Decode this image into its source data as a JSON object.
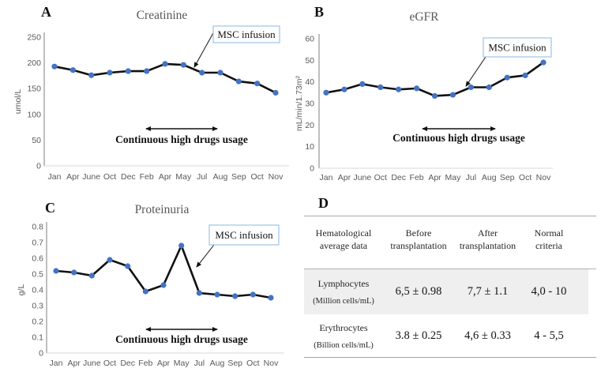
{
  "colors": {
    "marker": "#4472c4",
    "series_line": "#111111",
    "callout_border": "#9dc3e6",
    "muted_text": "#595959",
    "y_axis": "#7f7f7f",
    "x_axis": "#d9d9d9",
    "table_line": "#a6a6a6",
    "row_shade": "#efefef"
  },
  "chart_data": [
    {
      "panel_label": "A",
      "type": "line",
      "title": "Creatinine",
      "ylabel": "umol/L",
      "categories": [
        "Jan",
        "Apr",
        "June",
        "Oct",
        "Dec",
        "Feb",
        "Apr",
        "May",
        "Jul",
        "Aug",
        "Sep",
        "Oct",
        "Nov"
      ],
      "values": [
        193,
        186,
        176,
        181,
        184,
        184,
        198,
        196,
        181,
        181,
        164,
        160,
        142
      ],
      "ylim": [
        0,
        250
      ],
      "ytick_step": 50,
      "grid": "off",
      "legend": "none",
      "annotations": {
        "callout": "MSC infusion",
        "span_label": "Continuous high drugs usage"
      }
    },
    {
      "panel_label": "B",
      "type": "line",
      "title": "eGFR",
      "ylabel": "mL/min/1.73m²",
      "categories": [
        "Jan",
        "Apr",
        "June",
        "Oct",
        "Dec",
        "Feb",
        "Apr",
        "May",
        "Jul",
        "Aug",
        "Sep",
        "Oct",
        "Nov"
      ],
      "values": [
        35,
        36.5,
        39,
        37.5,
        36.5,
        37,
        33.5,
        34,
        37.5,
        37.5,
        42,
        43,
        49
      ],
      "ylim": [
        0,
        60
      ],
      "ytick_step": 10,
      "grid": "off",
      "legend": "none",
      "annotations": {
        "callout": "MSC infusion",
        "span_label": "Continuous high drugs usage"
      }
    },
    {
      "panel_label": "C",
      "type": "line",
      "title": "Proteinuria",
      "ylabel": "g/L",
      "categories": [
        "Jan",
        "Apr",
        "June",
        "Oct",
        "Dec",
        "Feb",
        "Apr",
        "May",
        "Jul",
        "Aug",
        "Sep",
        "Oct",
        "Nov"
      ],
      "values": [
        0.52,
        0.51,
        0.49,
        0.59,
        0.55,
        0.39,
        0.43,
        0.68,
        0.38,
        0.37,
        0.36,
        0.37,
        0.35
      ],
      "ylim": [
        0,
        0.8
      ],
      "ytick_step": 0.1,
      "grid": "off",
      "legend": "none",
      "annotations": {
        "callout": "MSC infusion",
        "span_label": "Continuous high drugs usage"
      }
    }
  ],
  "table": {
    "panel_label": "D",
    "headers": [
      {
        "line1": "Hematological",
        "line2": "average data"
      },
      {
        "line1": "Before",
        "line2": "transplantation"
      },
      {
        "line1": "After",
        "line2": "transplantation"
      },
      {
        "line1": "Normal",
        "line2": "criteria"
      }
    ],
    "rows": [
      {
        "analyte": "Lymphocytes",
        "unit": "(Million cells/mL)",
        "before": "6,5 ± 0.98",
        "after": "7,7 ± 1.1",
        "normal": "4,0 - 10"
      },
      {
        "analyte": "Erythrocytes",
        "unit": "(Billion cells/mL)",
        "before": "3.8 ± 0.25",
        "after": "4,6 ± 0.33",
        "normal": "4 - 5,5"
      }
    ]
  }
}
